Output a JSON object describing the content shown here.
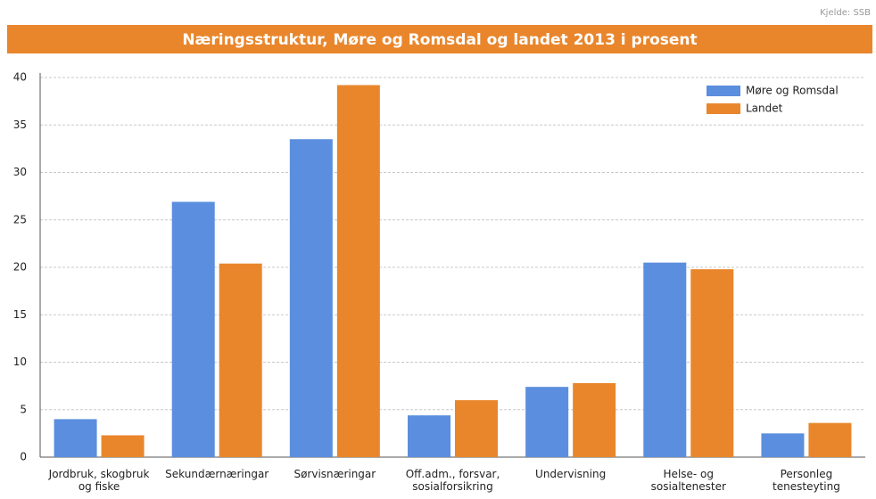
{
  "chart_data": {
    "type": "bar",
    "source": "Kjelde: SSB",
    "title": "Næringsstruktur, Møre og Romsdal og landet 2013 i prosent",
    "categories": [
      "Jordbruk, skogbruk og fiske",
      "Sekundærnæringar",
      "Sørvisnæringar",
      "Off.adm., forsvar, sosialforsikring",
      "Undervisning",
      "Helse- og sosialtenester",
      "Personleg tenesteyting"
    ],
    "series": [
      {
        "name": "Møre og Romsdal",
        "color": "#5b8ede",
        "values": [
          4.0,
          26.9,
          33.5,
          4.4,
          7.4,
          20.5,
          2.5
        ]
      },
      {
        "name": "Landet",
        "color": "#e9862c",
        "values": [
          2.3,
          20.4,
          39.2,
          6.0,
          7.8,
          19.8,
          3.6
        ]
      }
    ],
    "ylim": [
      0,
      40
    ],
    "yticks": [
      0,
      5,
      10,
      15,
      20,
      25,
      30,
      35,
      40
    ],
    "grid": true,
    "legend": "upper right"
  }
}
